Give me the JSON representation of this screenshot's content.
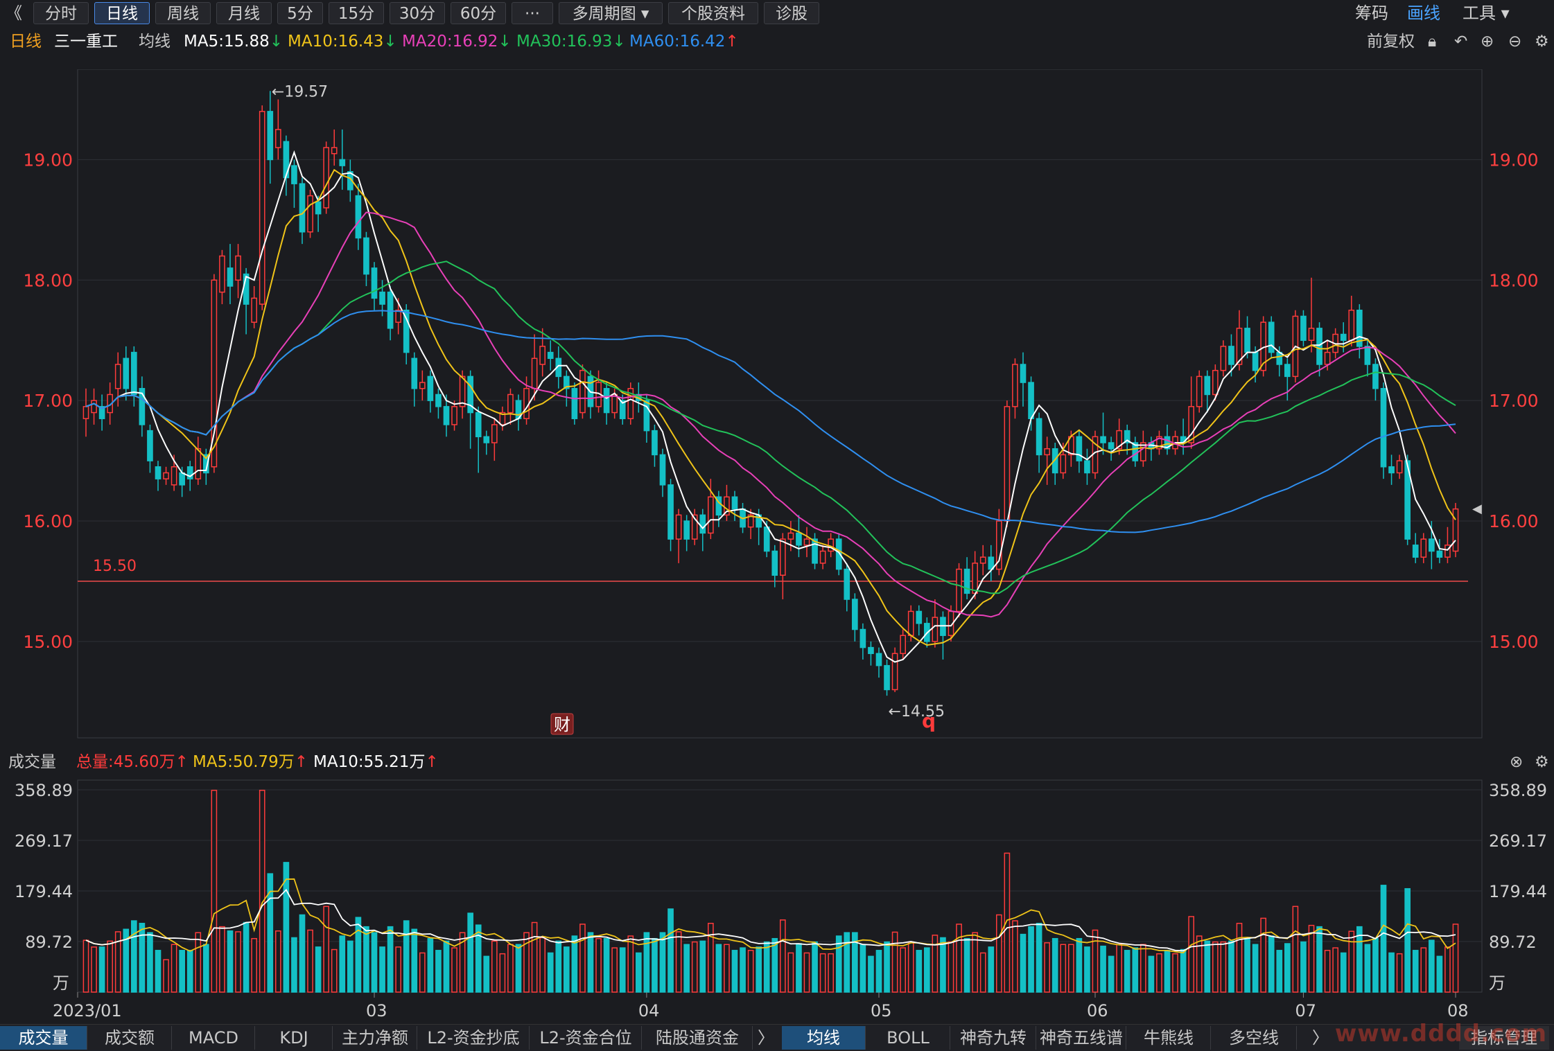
{
  "toolbar": {
    "back": "《",
    "tabs": [
      "分时",
      "日线",
      "周线",
      "月线",
      "5分",
      "15分",
      "30分",
      "60分",
      "···",
      "多周期图 ▾",
      "个股资料",
      "诊股"
    ],
    "active_tab": "日线",
    "right": [
      "筹码",
      "画线",
      "工具 ▾"
    ]
  },
  "ma_bar": {
    "period": "日线",
    "name": "三一重工",
    "avg_label": "均线",
    "ma5": "MA5:15.88",
    "ma10": "MA10:16.43",
    "ma20": "MA20:16.92",
    "ma30": "MA30:16.93",
    "ma60": "MA60:16.42",
    "fq": "前复权"
  },
  "colors": {
    "up": "#ff3b3b",
    "down": "#14c0c6",
    "ma5": "#ffffff",
    "ma10": "#f0c419",
    "ma20": "#e840b8",
    "ma30": "#22c25a",
    "ma60": "#2f8ff0",
    "hline": "#e04848",
    "grid": "#2e3036",
    "axis": "#ff4040"
  },
  "chart_data": {
    "type": "candlestick",
    "y_ticks": [
      "19.00",
      "18.00",
      "17.00",
      "16.00",
      "15.00"
    ],
    "ylim": [
      14.2,
      19.75
    ],
    "high_annotation": "←19.57",
    "low_annotation": "←14.55",
    "hline_label": "15.50",
    "hline_value": 15.5,
    "markers": [
      "财",
      "q"
    ],
    "x_labels": [
      "2023/01",
      "03",
      "04",
      "05",
      "06",
      "07",
      "08"
    ],
    "candles": [
      [
        16.85,
        16.95,
        16.7,
        17.1
      ],
      [
        16.9,
        17.0,
        16.8,
        17.1
      ],
      [
        16.95,
        16.85,
        16.75,
        17.05
      ],
      [
        16.9,
        17.05,
        16.8,
        17.15
      ],
      [
        17.1,
        17.3,
        16.95,
        17.4
      ],
      [
        17.35,
        17.1,
        17.0,
        17.45
      ],
      [
        17.4,
        17.05,
        16.95,
        17.45
      ],
      [
        17.1,
        16.8,
        16.7,
        17.2
      ],
      [
        16.75,
        16.5,
        16.4,
        16.8
      ],
      [
        16.45,
        16.35,
        16.25,
        16.5
      ],
      [
        16.35,
        16.4,
        16.3,
        16.45
      ],
      [
        16.3,
        16.45,
        16.25,
        16.55
      ],
      [
        16.4,
        16.3,
        16.2,
        16.45
      ],
      [
        16.45,
        16.35,
        16.25,
        16.5
      ],
      [
        16.35,
        16.6,
        16.3,
        16.7
      ],
      [
        16.55,
        16.4,
        16.3,
        16.6
      ],
      [
        16.45,
        18.0,
        16.4,
        18.05
      ],
      [
        17.9,
        18.2,
        17.8,
        18.25
      ],
      [
        18.1,
        17.95,
        17.8,
        18.3
      ],
      [
        18.0,
        18.2,
        17.85,
        18.3
      ],
      [
        18.05,
        17.8,
        17.55,
        18.1
      ],
      [
        17.65,
        17.85,
        17.6,
        17.95
      ],
      [
        17.8,
        19.4,
        17.75,
        19.45
      ],
      [
        19.4,
        19.0,
        18.8,
        19.57
      ],
      [
        19.1,
        19.25,
        19.0,
        19.5
      ],
      [
        19.15,
        18.85,
        18.7,
        19.2
      ],
      [
        18.95,
        18.8,
        18.6,
        19.0
      ],
      [
        18.8,
        18.4,
        18.3,
        18.85
      ],
      [
        18.4,
        18.7,
        18.35,
        18.75
      ],
      [
        18.65,
        18.55,
        18.4,
        18.7
      ],
      [
        18.6,
        19.1,
        18.55,
        19.15
      ],
      [
        19.05,
        19.1,
        18.95,
        19.25
      ],
      [
        19.0,
        18.95,
        18.75,
        19.25
      ],
      [
        18.9,
        18.75,
        18.65,
        19.0
      ],
      [
        18.7,
        18.35,
        18.25,
        18.8
      ],
      [
        18.35,
        18.05,
        17.95,
        18.4
      ],
      [
        18.1,
        17.85,
        17.75,
        18.15
      ],
      [
        17.9,
        17.8,
        17.7,
        18.0
      ],
      [
        17.9,
        17.6,
        17.5,
        17.95
      ],
      [
        17.65,
        17.75,
        17.55,
        17.85
      ],
      [
        17.75,
        17.4,
        17.3,
        17.8
      ],
      [
        17.35,
        17.1,
        16.95,
        17.4
      ],
      [
        17.1,
        17.15,
        17.0,
        17.25
      ],
      [
        17.2,
        17.0,
        16.9,
        17.25
      ],
      [
        17.05,
        16.95,
        16.85,
        17.1
      ],
      [
        16.95,
        16.8,
        16.7,
        17.05
      ],
      [
        16.8,
        16.95,
        16.75,
        17.0
      ],
      [
        16.95,
        17.2,
        16.85,
        17.25
      ],
      [
        17.2,
        16.9,
        16.6,
        17.25
      ],
      [
        16.9,
        16.7,
        16.4,
        16.95
      ],
      [
        16.7,
        16.65,
        16.55,
        16.75
      ],
      [
        16.65,
        16.8,
        16.5,
        16.85
      ],
      [
        16.8,
        16.9,
        16.75,
        16.95
      ],
      [
        16.9,
        17.05,
        16.8,
        17.1
      ],
      [
        17.0,
        16.85,
        16.75,
        17.05
      ],
      [
        16.85,
        17.1,
        16.8,
        17.2
      ],
      [
        17.1,
        17.35,
        17.0,
        17.55
      ],
      [
        17.3,
        17.45,
        17.2,
        17.6
      ],
      [
        17.4,
        17.35,
        17.25,
        17.5
      ],
      [
        17.35,
        17.2,
        17.1,
        17.45
      ],
      [
        17.2,
        17.1,
        16.95,
        17.25
      ],
      [
        17.1,
        16.85,
        16.8,
        17.15
      ],
      [
        16.9,
        17.25,
        16.85,
        17.3
      ],
      [
        17.2,
        16.95,
        16.85,
        17.25
      ],
      [
        16.95,
        17.15,
        16.9,
        17.25
      ],
      [
        17.1,
        16.9,
        16.8,
        17.15
      ],
      [
        16.9,
        17.05,
        16.85,
        17.1
      ],
      [
        17.0,
        16.85,
        16.8,
        17.05
      ],
      [
        16.85,
        17.1,
        16.8,
        17.15
      ],
      [
        17.05,
        17.0,
        16.9,
        17.15
      ],
      [
        17.0,
        16.75,
        16.65,
        17.05
      ],
      [
        16.75,
        16.55,
        16.45,
        16.8
      ],
      [
        16.55,
        16.3,
        16.2,
        16.6
      ],
      [
        16.3,
        15.85,
        15.75,
        16.35
      ],
      [
        15.85,
        16.05,
        15.65,
        16.1
      ],
      [
        16.0,
        15.85,
        15.75,
        16.05
      ],
      [
        15.85,
        16.05,
        15.8,
        16.1
      ],
      [
        16.05,
        15.9,
        15.75,
        16.1
      ],
      [
        15.9,
        16.2,
        15.85,
        16.35
      ],
      [
        16.2,
        16.05,
        15.95,
        16.25
      ],
      [
        16.05,
        16.2,
        16.0,
        16.3
      ],
      [
        16.2,
        16.1,
        16.0,
        16.25
      ],
      [
        16.1,
        15.95,
        15.9,
        16.15
      ],
      [
        15.95,
        16.05,
        15.85,
        16.1
      ],
      [
        16.05,
        15.95,
        15.8,
        16.1
      ],
      [
        15.95,
        15.75,
        15.7,
        16.0
      ],
      [
        15.75,
        15.55,
        15.45,
        15.8
      ],
      [
        15.55,
        15.85,
        15.35,
        15.9
      ],
      [
        15.85,
        15.9,
        15.75,
        16.0
      ],
      [
        15.9,
        15.8,
        15.7,
        16.05
      ],
      [
        15.8,
        15.85,
        15.7,
        15.95
      ],
      [
        15.85,
        15.65,
        15.6,
        15.9
      ],
      [
        15.65,
        15.75,
        15.6,
        15.8
      ],
      [
        15.75,
        15.85,
        15.7,
        15.9
      ],
      [
        15.85,
        15.6,
        15.55,
        15.9
      ],
      [
        15.6,
        15.35,
        15.25,
        15.65
      ],
      [
        15.35,
        15.1,
        15.0,
        15.4
      ],
      [
        15.1,
        14.95,
        14.85,
        15.15
      ],
      [
        14.95,
        14.9,
        14.8,
        15.0
      ],
      [
        14.9,
        14.8,
        14.7,
        14.95
      ],
      [
        14.8,
        14.6,
        14.55,
        14.85
      ],
      [
        14.6,
        14.9,
        14.58,
        14.95
      ],
      [
        14.9,
        15.05,
        14.85,
        15.1
      ],
      [
        15.05,
        15.25,
        15.0,
        15.3
      ],
      [
        15.25,
        15.15,
        15.05,
        15.3
      ],
      [
        15.15,
        15.0,
        14.95,
        15.2
      ],
      [
        15.0,
        15.2,
        14.95,
        15.35
      ],
      [
        15.2,
        15.05,
        14.85,
        15.25
      ],
      [
        15.05,
        15.25,
        15.0,
        15.3
      ],
      [
        15.25,
        15.6,
        15.2,
        15.65
      ],
      [
        15.6,
        15.4,
        15.35,
        15.7
      ],
      [
        15.4,
        15.65,
        15.35,
        15.75
      ],
      [
        15.65,
        15.7,
        15.55,
        15.8
      ],
      [
        15.7,
        15.6,
        15.5,
        15.8
      ],
      [
        15.6,
        16.0,
        15.55,
        16.1
      ],
      [
        16.0,
        16.95,
        15.95,
        17.0
      ],
      [
        16.95,
        17.3,
        16.85,
        17.35
      ],
      [
        17.3,
        17.15,
        16.95,
        17.4
      ],
      [
        17.15,
        16.85,
        16.75,
        17.2
      ],
      [
        16.85,
        16.55,
        16.4,
        16.9
      ],
      [
        16.55,
        16.6,
        16.3,
        16.7
      ],
      [
        16.6,
        16.4,
        16.3,
        16.65
      ],
      [
        16.4,
        16.55,
        16.35,
        16.65
      ],
      [
        16.55,
        16.7,
        16.45,
        16.75
      ],
      [
        16.7,
        16.5,
        16.4,
        16.75
      ],
      [
        16.5,
        16.4,
        16.3,
        16.6
      ],
      [
        16.4,
        16.7,
        16.35,
        16.75
      ],
      [
        16.7,
        16.65,
        16.55,
        16.9
      ],
      [
        16.65,
        16.6,
        16.5,
        16.7
      ],
      [
        16.6,
        16.75,
        16.55,
        16.85
      ],
      [
        16.75,
        16.65,
        16.55,
        16.8
      ],
      [
        16.65,
        16.5,
        16.45,
        16.7
      ],
      [
        16.5,
        16.65,
        16.45,
        16.75
      ],
      [
        16.65,
        16.6,
        16.5,
        16.7
      ],
      [
        16.6,
        16.7,
        16.55,
        16.75
      ],
      [
        16.7,
        16.6,
        16.55,
        16.8
      ],
      [
        16.6,
        16.7,
        16.55,
        16.75
      ],
      [
        16.7,
        16.65,
        16.55,
        16.85
      ],
      [
        16.65,
        16.95,
        16.6,
        17.2
      ],
      [
        16.95,
        17.2,
        16.9,
        17.25
      ],
      [
        17.2,
        17.05,
        16.9,
        17.25
      ],
      [
        17.05,
        17.25,
        17.0,
        17.3
      ],
      [
        17.25,
        17.45,
        17.2,
        17.5
      ],
      [
        17.45,
        17.3,
        17.2,
        17.55
      ],
      [
        17.3,
        17.6,
        17.25,
        17.75
      ],
      [
        17.6,
        17.4,
        17.35,
        17.7
      ],
      [
        17.4,
        17.25,
        17.15,
        17.45
      ],
      [
        17.25,
        17.65,
        17.2,
        17.7
      ],
      [
        17.65,
        17.4,
        17.35,
        17.7
      ],
      [
        17.4,
        17.3,
        17.2,
        17.45
      ],
      [
        17.3,
        17.2,
        17.0,
        17.35
      ],
      [
        17.2,
        17.7,
        17.15,
        17.75
      ],
      [
        17.7,
        17.5,
        17.45,
        17.75
      ],
      [
        17.5,
        17.6,
        17.4,
        18.02
      ],
      [
        17.6,
        17.3,
        17.2,
        17.65
      ],
      [
        17.3,
        17.4,
        17.25,
        17.5
      ],
      [
        17.4,
        17.55,
        17.35,
        17.6
      ],
      [
        17.55,
        17.5,
        17.4,
        17.65
      ],
      [
        17.5,
        17.75,
        17.45,
        17.87
      ],
      [
        17.75,
        17.45,
        17.35,
        17.8
      ],
      [
        17.45,
        17.3,
        17.2,
        17.5
      ],
      [
        17.3,
        17.1,
        17.0,
        17.35
      ],
      [
        17.1,
        16.45,
        16.35,
        17.15
      ],
      [
        16.45,
        16.4,
        16.3,
        16.55
      ],
      [
        16.4,
        16.5,
        16.35,
        16.55
      ],
      [
        16.5,
        15.85,
        15.8,
        16.55
      ],
      [
        15.8,
        15.7,
        15.65,
        15.9
      ],
      [
        15.7,
        15.85,
        15.65,
        15.9
      ],
      [
        15.85,
        15.75,
        15.6,
        16.0
      ],
      [
        15.75,
        15.7,
        15.65,
        15.85
      ],
      [
        15.7,
        15.8,
        15.65,
        15.95
      ],
      [
        15.75,
        16.1,
        15.7,
        16.15
      ]
    ],
    "ma_bar_vol": {
      "label": "成交量",
      "total": "总量:45.60万",
      "ma5": "MA5:50.79万",
      "ma10": "MA10:55.21万"
    },
    "vol_ticks": [
      "358.89",
      "269.17",
      "179.44",
      "89.72"
    ],
    "vol_unit": "万",
    "vol_max": 358.89
  },
  "bottom_tabs_left": [
    "成交量",
    "成交额",
    "MACD",
    "KDJ",
    "主力净额",
    "L2-资金抄底",
    "L2-资金合位",
    "陆股通资金"
  ],
  "bottom_tabs_right": [
    "均线",
    "BOLL",
    "神奇九转",
    "神奇五线谱",
    "牛熊线",
    "多空线"
  ],
  "bottom_more": "指标管理",
  "watermark": "www.dddd.com"
}
